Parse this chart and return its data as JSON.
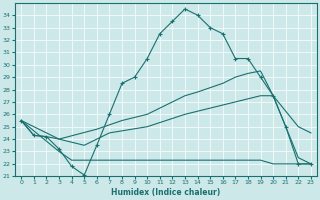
{
  "xlabel": "Humidex (Indice chaleur)",
  "xlim": [
    -0.5,
    23.5
  ],
  "ylim": [
    21,
    35
  ],
  "yticks": [
    21,
    22,
    23,
    24,
    25,
    26,
    27,
    28,
    29,
    30,
    31,
    32,
    33,
    34
  ],
  "xticks": [
    0,
    1,
    2,
    3,
    4,
    5,
    6,
    7,
    8,
    9,
    10,
    11,
    12,
    13,
    14,
    15,
    16,
    17,
    18,
    19,
    20,
    21,
    22,
    23
  ],
  "bg_color": "#cce8e8",
  "line_color": "#1a7070",
  "grid_color": "#aacccc",
  "lines": [
    {
      "x": [
        0,
        1,
        2,
        3,
        4,
        5,
        6,
        7,
        8,
        9,
        10,
        11,
        12,
        13,
        14,
        15,
        16,
        17,
        18,
        19,
        20,
        21,
        22,
        23
      ],
      "y": [
        25.5,
        24.3,
        24.2,
        23.2,
        21.8,
        21.1,
        23.5,
        26.0,
        28.5,
        29.0,
        30.5,
        32.5,
        33.5,
        34.5,
        34.0,
        33.0,
        32.5,
        30.5,
        30.5,
        29.0,
        27.5,
        25.0,
        22.0,
        22.0
      ],
      "marker": true
    },
    {
      "x": [
        0,
        1,
        2,
        3,
        6,
        8,
        10,
        13,
        14,
        16,
        17,
        18,
        19,
        20,
        21,
        22,
        23
      ],
      "y": [
        25.5,
        24.3,
        24.2,
        24.0,
        24.8,
        25.5,
        26.0,
        27.5,
        27.8,
        28.5,
        29.0,
        29.3,
        29.5,
        27.5,
        25.0,
        22.5,
        22.0
      ],
      "marker": false
    },
    {
      "x": [
        0,
        3,
        4,
        5,
        6,
        10,
        14,
        19,
        20,
        22,
        23
      ],
      "y": [
        25.5,
        23.0,
        22.3,
        22.3,
        22.3,
        22.3,
        22.3,
        22.3,
        22.0,
        22.0,
        22.0
      ],
      "marker": false
    },
    {
      "x": [
        0,
        3,
        5,
        7,
        10,
        13,
        15,
        17,
        19,
        20,
        22,
        23
      ],
      "y": [
        25.5,
        24.0,
        23.5,
        24.5,
        25.0,
        26.0,
        26.5,
        27.0,
        27.5,
        27.5,
        25.0,
        24.5
      ],
      "marker": false
    }
  ]
}
